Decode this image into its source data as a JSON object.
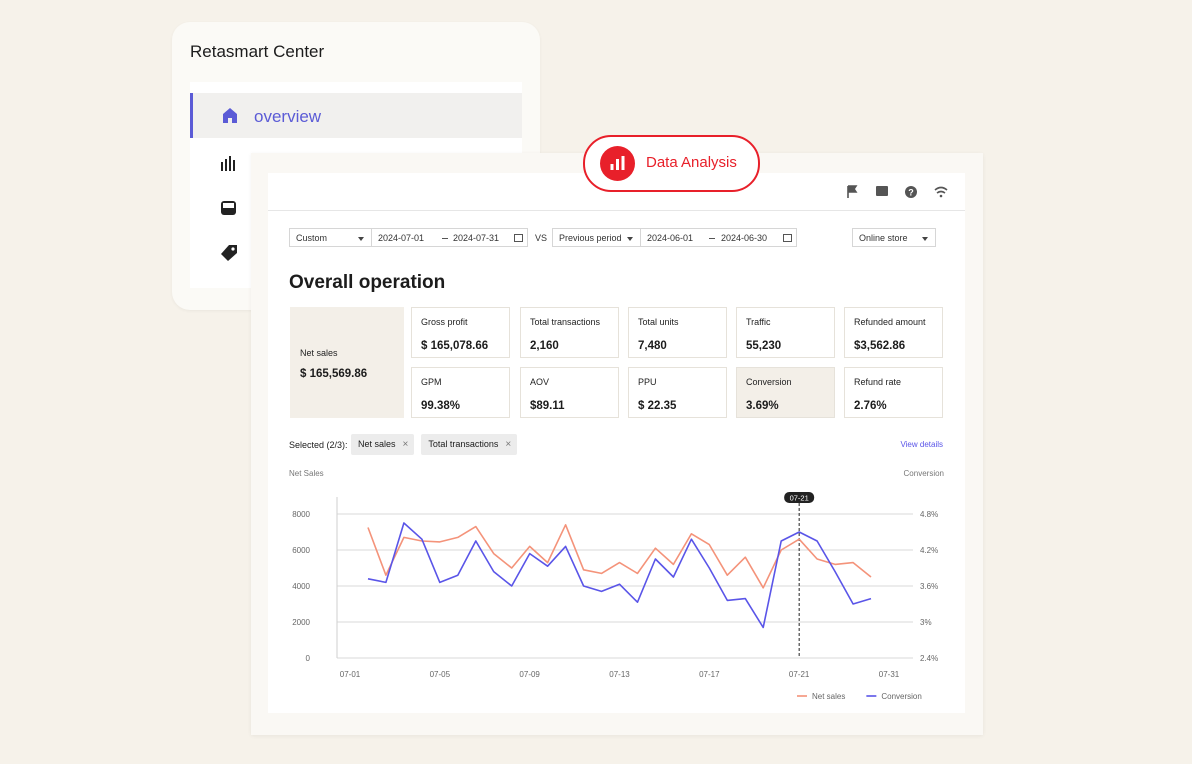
{
  "sidebar": {
    "title": "Retasmart Center",
    "items": [
      {
        "label": "overview"
      }
    ]
  },
  "badge": "Data Analysis",
  "filters": {
    "range_type": "Custom",
    "start": "2024-07-01",
    "end": "2024-07-31",
    "vs": "VS",
    "compare_type": "Previous period",
    "compare_start": "2024-06-01",
    "compare_end": "2024-06-30",
    "store": "Online store"
  },
  "heading": "Overall operation",
  "metrics": [
    {
      "label": "Net sales",
      "value": "$ 165,569.86"
    },
    {
      "label": "Gross profit",
      "value": "$ 165,078.66"
    },
    {
      "label": "Total transactions",
      "value": "2,160"
    },
    {
      "label": "Total units",
      "value": "7,480"
    },
    {
      "label": "Traffic",
      "value": "55,230"
    },
    {
      "label": "Refunded amount",
      "value": "$3,562.86"
    },
    {
      "label": "GPM",
      "value": "99.38%"
    },
    {
      "label": "AOV",
      "value": "$89.11"
    },
    {
      "label": "PPU",
      "value": "$ 22.35"
    },
    {
      "label": "Conversion",
      "value": "3.69%"
    },
    {
      "label": "Refund rate",
      "value": "2.76%"
    }
  ],
  "selection": {
    "label": "Selected (2/3):",
    "chips": [
      "Net sales",
      "Total transactions"
    ],
    "link": "View details"
  },
  "chart_data": {
    "type": "line",
    "y_label": "Net Sales",
    "y2_label": "Conversion",
    "categories": [
      "07-01",
      null,
      null,
      null,
      null,
      "07-05",
      null,
      null,
      null,
      null,
      "07-09",
      null,
      null,
      null,
      null,
      "07-13",
      null,
      null,
      null,
      null,
      "07-17",
      null,
      null,
      null,
      null,
      "07-21",
      null,
      null,
      null,
      null,
      "07-31"
    ],
    "series": [
      {
        "name": "Net sales",
        "color": "#f4937a",
        "values": [
          null,
          7250,
          4600,
          6700,
          6500,
          6450,
          6700,
          7300,
          5800,
          5000,
          6200,
          5300,
          7400,
          4900,
          4700,
          5300,
          4700,
          6100,
          5200,
          6900,
          6300,
          4600,
          5600,
          3900,
          6000,
          6600,
          5500,
          5200,
          5300,
          4500,
          null
        ]
      },
      {
        "name": "Conversion",
        "color": "#5a55e8",
        "axis": "y2",
        "values": [
          null,
          3.72,
          3.66,
          4.65,
          4.38,
          3.66,
          3.78,
          4.35,
          3.84,
          3.6,
          4.14,
          3.93,
          4.26,
          3.6,
          3.51,
          3.63,
          3.33,
          4.05,
          3.75,
          4.38,
          3.9,
          3.36,
          3.39,
          2.91,
          4.35,
          4.5,
          4.35,
          3.84,
          3.3,
          3.39,
          null
        ]
      }
    ],
    "ylim": [
      0,
      8000
    ],
    "yticks": [
      0,
      2000,
      4000,
      6000,
      8000
    ],
    "y2lim": [
      2.4,
      4.8
    ],
    "y2ticks": [
      {
        "value": 2.4,
        "label": "2.4%"
      },
      {
        "value": 3,
        "label": "3%"
      },
      {
        "value": 3.6,
        "label": "3.6%"
      },
      {
        "value": 4.2,
        "label": "4.2%"
      },
      {
        "value": 4.8,
        "label": "4.8%"
      }
    ],
    "grid": true,
    "legend": "bottom-right"
  }
}
